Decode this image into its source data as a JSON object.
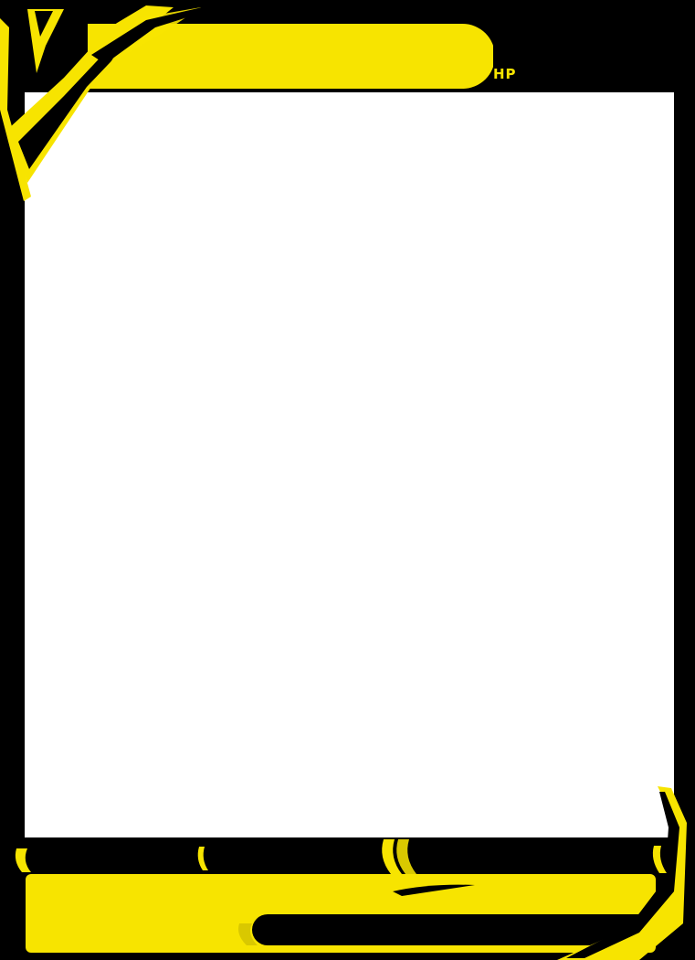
{
  "card": {
    "hp_label": "HP"
  },
  "colors": {
    "frame": "#000000",
    "accent": "#f7e400",
    "art_background": "#ffffff"
  }
}
